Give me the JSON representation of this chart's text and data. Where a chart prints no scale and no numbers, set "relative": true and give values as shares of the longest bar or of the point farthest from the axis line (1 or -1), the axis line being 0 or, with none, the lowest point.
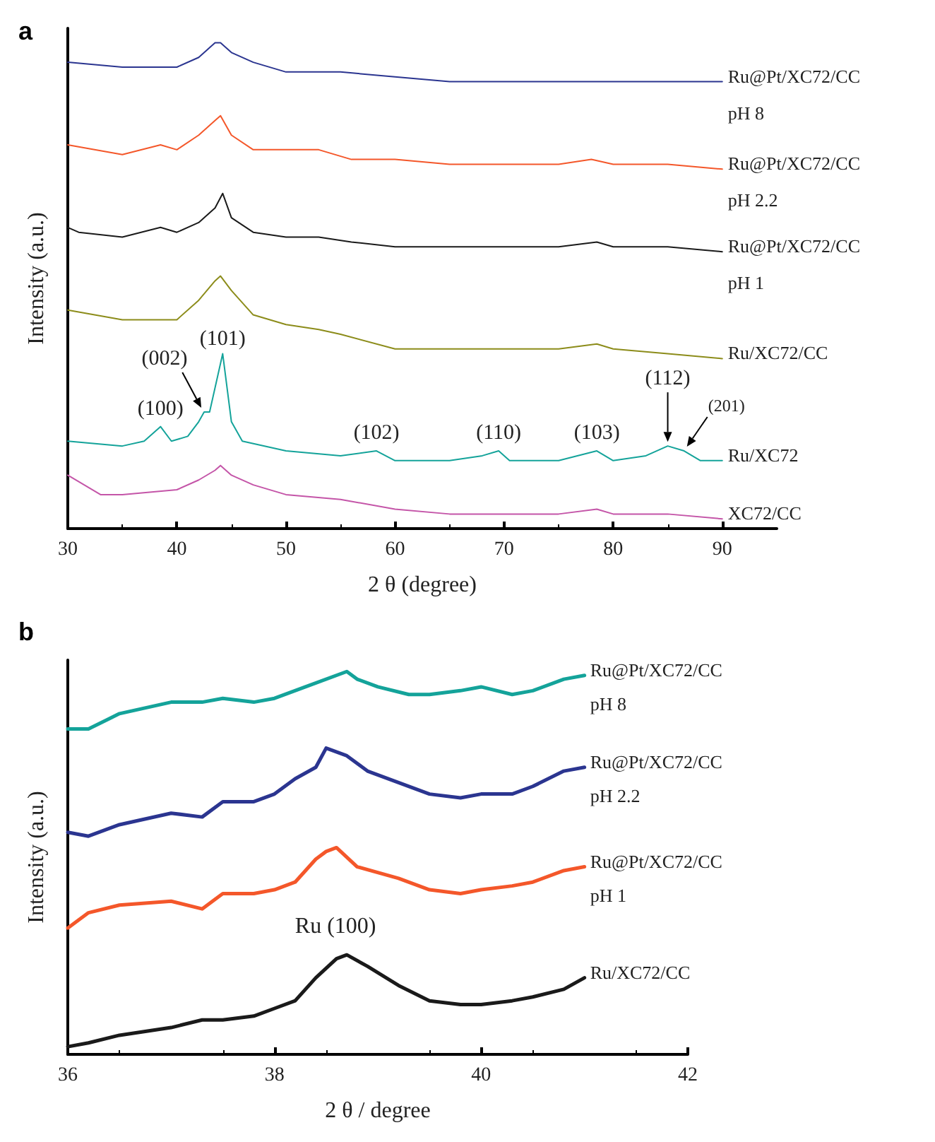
{
  "chart_data": [
    {
      "type": "line",
      "title": "a",
      "xlabel": "2 θ (degree)",
      "ylabel": "Intensity (a.u.)",
      "relative": true,
      "xlim": [
        30,
        95
      ],
      "xticks": [
        30,
        40,
        50,
        60,
        70,
        80,
        90
      ],
      "grid": false,
      "legend": false,
      "series": [
        {
          "name": "Ru@Pt/XC72/CC pH 8",
          "color": "#2b3590",
          "x": [
            30,
            35,
            38,
            40,
            42,
            43.5,
            44,
            45,
            47,
            50,
            53,
            55,
            60,
            65,
            70,
            75,
            78,
            80,
            85,
            90
          ],
          "values": [
            0.96,
            0.95,
            0.95,
            0.95,
            0.97,
            1.0,
            1.0,
            0.98,
            0.96,
            0.94,
            0.94,
            0.94,
            0.93,
            0.92,
            0.92,
            0.92,
            0.92,
            0.92,
            0.92,
            0.92
          ]
        },
        {
          "name": "Ru@Pt/XC72/CC pH 2.2",
          "color": "#f4572a",
          "x": [
            30,
            35,
            38.5,
            40,
            42,
            43.5,
            44,
            45,
            47,
            50,
            53,
            56,
            60,
            65,
            70,
            75,
            78,
            80,
            85,
            90
          ],
          "values": [
            0.79,
            0.77,
            0.79,
            0.78,
            0.81,
            0.84,
            0.85,
            0.81,
            0.78,
            0.78,
            0.78,
            0.76,
            0.76,
            0.75,
            0.75,
            0.75,
            0.76,
            0.75,
            0.75,
            0.74
          ]
        },
        {
          "name": "Ru@Pt/XC72/CC pH 1",
          "color": "#1a1a1a",
          "x": [
            30,
            31,
            35,
            38.5,
            40,
            42,
            43.5,
            44.2,
            45,
            47,
            50,
            53,
            56,
            60,
            65,
            70,
            75,
            78.5,
            80,
            85,
            90
          ],
          "values": [
            0.62,
            0.61,
            0.6,
            0.62,
            0.61,
            0.63,
            0.66,
            0.69,
            0.64,
            0.61,
            0.6,
            0.6,
            0.59,
            0.58,
            0.58,
            0.58,
            0.58,
            0.59,
            0.58,
            0.58,
            0.57
          ]
        },
        {
          "name": "Ru/XC72/CC",
          "color": "#8c8c1a",
          "x": [
            30,
            35,
            38,
            40,
            42,
            43.5,
            44,
            45,
            47,
            50,
            53,
            55,
            60,
            65,
            70,
            75,
            78.5,
            80,
            85,
            90
          ],
          "values": [
            0.45,
            0.43,
            0.43,
            0.43,
            0.47,
            0.51,
            0.52,
            0.49,
            0.44,
            0.42,
            0.41,
            0.4,
            0.37,
            0.37,
            0.37,
            0.37,
            0.38,
            0.37,
            0.36,
            0.35
          ]
        },
        {
          "name": "Ru/XC72",
          "color": "#14a39a",
          "x": [
            30,
            35,
            37,
            38.5,
            39.5,
            41,
            42,
            42.5,
            43,
            44.2,
            45,
            46,
            50,
            55,
            58.3,
            60,
            65,
            68,
            69.5,
            70.5,
            75,
            78.5,
            80,
            83,
            85,
            86.5,
            88,
            90
          ],
          "values": [
            0.18,
            0.17,
            0.18,
            0.21,
            0.18,
            0.19,
            0.22,
            0.24,
            0.24,
            0.36,
            0.22,
            0.18,
            0.16,
            0.15,
            0.16,
            0.14,
            0.14,
            0.15,
            0.16,
            0.14,
            0.14,
            0.16,
            0.14,
            0.15,
            0.17,
            0.16,
            0.14,
            0.14
          ]
        },
        {
          "name": "XC72/CC",
          "color": "#c455a8",
          "x": [
            30,
            33,
            35,
            40,
            42,
            43.5,
            44,
            45,
            47,
            50,
            55,
            60,
            65,
            70,
            75,
            78.5,
            80,
            85,
            90
          ],
          "values": [
            0.11,
            0.07,
            0.07,
            0.08,
            0.1,
            0.12,
            0.13,
            0.11,
            0.09,
            0.07,
            0.06,
            0.04,
            0.03,
            0.03,
            0.03,
            0.04,
            0.03,
            0.03,
            0.02
          ]
        }
      ],
      "annotations": [
        {
          "text": "(100)",
          "x": 38.5,
          "y": 0.21
        },
        {
          "text": "(002)",
          "x": 42.5,
          "y": 0.24
        },
        {
          "text": "(101)",
          "x": 44.2,
          "y": 0.36
        },
        {
          "text": "(102)",
          "x": 58.3,
          "y": 0.16
        },
        {
          "text": "(110)",
          "x": 69.5,
          "y": 0.16
        },
        {
          "text": "(103)",
          "x": 78.5,
          "y": 0.16
        },
        {
          "text": "(112)",
          "x": 85,
          "y": 0.17
        },
        {
          "text": "(201)",
          "x": 86.5,
          "y": 0.16
        }
      ]
    },
    {
      "type": "line",
      "title": "b",
      "xlabel": "2 θ / degree",
      "ylabel": "Intensity (a.u.)",
      "relative": true,
      "xlim": [
        36,
        42
      ],
      "xticks": [
        36,
        38,
        40,
        42
      ],
      "grid": false,
      "legend": false,
      "series": [
        {
          "name": "Ru@Pt/XC72/CC pH 8",
          "color": "#14a39a",
          "x": [
            36,
            36.2,
            36.5,
            37,
            37.3,
            37.5,
            37.8,
            38,
            38.3,
            38.7,
            38.8,
            39,
            39.3,
            39.5,
            39.8,
            40,
            40.3,
            40.5,
            40.8,
            41
          ],
          "values": [
            0.85,
            0.85,
            0.89,
            0.92,
            0.92,
            0.93,
            0.92,
            0.93,
            0.96,
            1.0,
            0.98,
            0.96,
            0.94,
            0.94,
            0.95,
            0.96,
            0.94,
            0.95,
            0.98,
            0.99
          ]
        },
        {
          "name": "Ru@Pt/XC72/CC pH 2.2",
          "color": "#2b3590",
          "x": [
            36,
            36.2,
            36.5,
            37,
            37.3,
            37.5,
            37.8,
            38,
            38.2,
            38.4,
            38.5,
            38.7,
            38.9,
            39.2,
            39.5,
            39.8,
            40,
            40.3,
            40.5,
            40.8,
            41
          ],
          "values": [
            0.58,
            0.57,
            0.6,
            0.63,
            0.62,
            0.66,
            0.66,
            0.68,
            0.72,
            0.75,
            0.8,
            0.78,
            0.74,
            0.71,
            0.68,
            0.67,
            0.68,
            0.68,
            0.7,
            0.74,
            0.75
          ]
        },
        {
          "name": "Ru@Pt/XC72/CC pH 1",
          "color": "#f4572a",
          "x": [
            36,
            36.2,
            36.5,
            37,
            37.3,
            37.5,
            37.8,
            38,
            38.2,
            38.4,
            38.5,
            38.6,
            38.8,
            39.2,
            39.5,
            39.8,
            40,
            40.3,
            40.5,
            40.8,
            41
          ],
          "values": [
            0.33,
            0.37,
            0.39,
            0.4,
            0.38,
            0.42,
            0.42,
            0.43,
            0.45,
            0.51,
            0.53,
            0.54,
            0.49,
            0.46,
            0.43,
            0.42,
            0.43,
            0.44,
            0.45,
            0.48,
            0.49
          ]
        },
        {
          "name": "Ru/XC72/CC",
          "color": "#1a1a1a",
          "x": [
            36,
            36.2,
            36.5,
            37,
            37.3,
            37.5,
            37.8,
            38,
            38.2,
            38.4,
            38.6,
            38.7,
            38.9,
            39.2,
            39.5,
            39.8,
            40,
            40.3,
            40.5,
            40.8,
            41
          ],
          "values": [
            0.02,
            0.03,
            0.05,
            0.07,
            0.09,
            0.09,
            0.1,
            0.12,
            0.14,
            0.2,
            0.25,
            0.26,
            0.23,
            0.18,
            0.14,
            0.13,
            0.13,
            0.14,
            0.15,
            0.17,
            0.2
          ]
        }
      ],
      "annotations": [
        {
          "text": "Ru (100)",
          "x": 38.7,
          "y": 0.26
        }
      ]
    }
  ]
}
